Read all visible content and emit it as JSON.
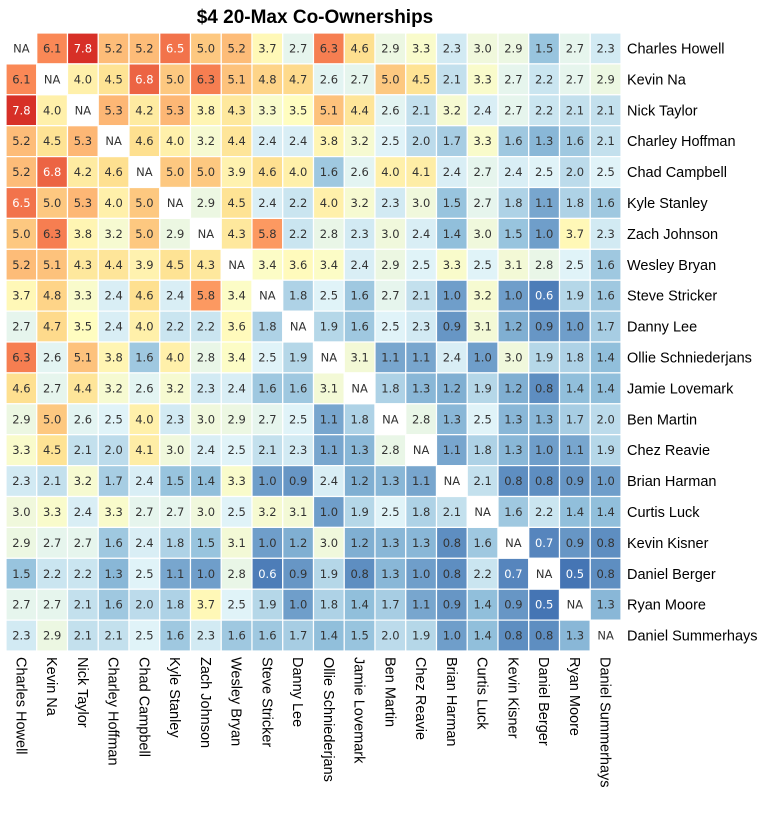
{
  "chart_data": {
    "type": "heatmap",
    "title": "$4 20-Max Co-Ownerships",
    "na_label": "NA",
    "players": [
      "Charles Howell",
      "Kevin Na",
      "Nick Taylor",
      "Charley Hoffman",
      "Chad Campbell",
      "Kyle Stanley",
      "Zach Johnson",
      "Wesley Bryan",
      "Steve Stricker",
      "Danny Lee",
      "Ollie Schniederjans",
      "Jamie Lovemark",
      "Ben Martin",
      "Chez Reavie",
      "Brian Harman",
      "Curtis Luck",
      "Kevin Kisner",
      "Daniel Berger",
      "Ryan Moore",
      "Daniel Summerhays"
    ],
    "values": [
      [
        null,
        6.1,
        7.8,
        5.2,
        5.2,
        6.5,
        5.0,
        5.2,
        3.7,
        2.7,
        6.3,
        4.6,
        2.9,
        3.3,
        2.3,
        3.0,
        2.9,
        1.5,
        2.7,
        2.3
      ],
      [
        6.1,
        null,
        4.0,
        4.5,
        6.8,
        5.0,
        6.3,
        5.1,
        4.8,
        4.7,
        2.6,
        2.7,
        5.0,
        4.5,
        2.1,
        3.3,
        2.7,
        2.2,
        2.7,
        2.9
      ],
      [
        7.8,
        4.0,
        null,
        5.3,
        4.2,
        5.3,
        3.8,
        4.3,
        3.3,
        3.5,
        5.1,
        4.4,
        2.6,
        2.1,
        3.2,
        2.4,
        2.7,
        2.2,
        2.1,
        2.1
      ],
      [
        5.2,
        4.5,
        5.3,
        null,
        4.6,
        4.0,
        3.2,
        4.4,
        2.4,
        2.4,
        3.8,
        3.2,
        2.5,
        2.0,
        1.7,
        3.3,
        1.6,
        1.3,
        1.6,
        2.1
      ],
      [
        5.2,
        6.8,
        4.2,
        4.6,
        null,
        5.0,
        5.0,
        3.9,
        4.6,
        4.0,
        1.6,
        2.6,
        4.0,
        4.1,
        2.4,
        2.7,
        2.4,
        2.5,
        2.0,
        2.5
      ],
      [
        6.5,
        5.0,
        5.3,
        4.0,
        5.0,
        null,
        2.9,
        4.5,
        2.4,
        2.2,
        4.0,
        3.2,
        2.3,
        3.0,
        1.5,
        2.7,
        1.8,
        1.1,
        1.8,
        1.6
      ],
      [
        5.0,
        6.3,
        3.8,
        3.2,
        5.0,
        2.9,
        null,
        4.3,
        5.8,
        2.2,
        2.8,
        2.3,
        3.0,
        2.4,
        1.4,
        3.0,
        1.5,
        1.0,
        3.7,
        2.3
      ],
      [
        5.2,
        5.1,
        4.3,
        4.4,
        3.9,
        4.5,
        4.3,
        null,
        3.4,
        3.6,
        3.4,
        2.4,
        2.9,
        2.5,
        3.3,
        2.5,
        3.1,
        2.8,
        2.5,
        1.6
      ],
      [
        3.7,
        4.8,
        3.3,
        2.4,
        4.6,
        2.4,
        5.8,
        3.4,
        null,
        1.8,
        2.5,
        1.6,
        2.7,
        2.1,
        1.0,
        3.2,
        1.0,
        0.6,
        1.9,
        1.6
      ],
      [
        2.7,
        4.7,
        3.5,
        2.4,
        4.0,
        2.2,
        2.2,
        3.6,
        1.8,
        null,
        1.9,
        1.6,
        2.5,
        2.3,
        0.9,
        3.1,
        1.2,
        0.9,
        1.0,
        1.7
      ],
      [
        6.3,
        2.6,
        5.1,
        3.8,
        1.6,
        4.0,
        2.8,
        3.4,
        2.5,
        1.9,
        null,
        3.1,
        1.1,
        1.1,
        2.4,
        1.0,
        3.0,
        1.9,
        1.8,
        1.4
      ],
      [
        4.6,
        2.7,
        4.4,
        3.2,
        2.6,
        3.2,
        2.3,
        2.4,
        1.6,
        1.6,
        3.1,
        null,
        1.8,
        1.3,
        1.2,
        1.9,
        1.2,
        0.8,
        1.4,
        1.4
      ],
      [
        2.9,
        5.0,
        2.6,
        2.5,
        4.0,
        2.3,
        3.0,
        2.9,
        2.7,
        2.5,
        1.1,
        1.8,
        null,
        2.8,
        1.3,
        2.5,
        1.3,
        1.3,
        1.7,
        2.0
      ],
      [
        3.3,
        4.5,
        2.1,
        2.0,
        4.1,
        3.0,
        2.4,
        2.5,
        2.1,
        2.3,
        1.1,
        1.3,
        2.8,
        null,
        1.1,
        1.8,
        1.3,
        1.0,
        1.1,
        1.9
      ],
      [
        2.3,
        2.1,
        3.2,
        1.7,
        2.4,
        1.5,
        1.4,
        3.3,
        1.0,
        0.9,
        2.4,
        1.2,
        1.3,
        1.1,
        null,
        2.1,
        0.8,
        0.8,
        0.9,
        1.0
      ],
      [
        3.0,
        3.3,
        2.4,
        3.3,
        2.7,
        2.7,
        3.0,
        2.5,
        3.2,
        3.1,
        1.0,
        1.9,
        2.5,
        1.8,
        2.1,
        null,
        1.6,
        2.2,
        1.4,
        1.4
      ],
      [
        2.9,
        2.7,
        2.7,
        1.6,
        2.4,
        1.8,
        1.5,
        3.1,
        1.0,
        1.2,
        3.0,
        1.2,
        1.3,
        1.3,
        0.8,
        1.6,
        null,
        0.7,
        0.9,
        0.8
      ],
      [
        1.5,
        2.2,
        2.2,
        1.3,
        2.5,
        1.1,
        1.0,
        2.8,
        0.6,
        0.9,
        1.9,
        0.8,
        1.3,
        1.0,
        0.8,
        2.2,
        0.7,
        null,
        0.5,
        0.8
      ],
      [
        2.7,
        2.7,
        2.1,
        1.6,
        2.0,
        1.8,
        3.7,
        2.5,
        1.9,
        1.0,
        1.8,
        1.4,
        1.7,
        1.1,
        0.9,
        1.4,
        0.9,
        0.5,
        null,
        1.3
      ],
      [
        2.3,
        2.9,
        2.1,
        2.1,
        2.5,
        1.6,
        2.3,
        1.6,
        1.6,
        1.7,
        1.4,
        1.5,
        2.0,
        1.9,
        1.0,
        1.4,
        0.8,
        0.8,
        1.3,
        null
      ]
    ],
    "color_scale": {
      "stops": [
        [
          0.5,
          "#4575b4"
        ],
        [
          1.4,
          "#91bfdb"
        ],
        [
          2.5,
          "#e0f3f8"
        ],
        [
          3.5,
          "#fffdc0"
        ],
        [
          4.6,
          "#fee090"
        ],
        [
          6.0,
          "#fc8d59"
        ],
        [
          7.8,
          "#d73027"
        ]
      ],
      "na_color": "#ffffff"
    }
  }
}
